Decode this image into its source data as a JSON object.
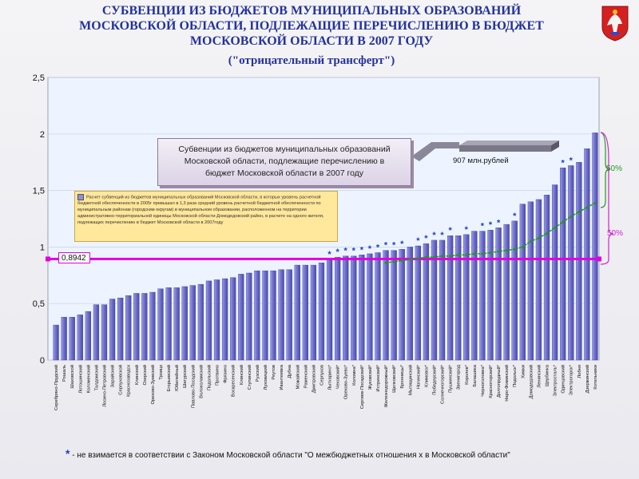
{
  "header": {
    "title_line1": "СУБВЕНЦИИ ИЗ БЮДЖЕТОВ МУНИЦИПАЛЬНЫХ ОБРАЗОВАНИЙ",
    "title_line2": "МОСКОВСКОЙ ОБЛАСТИ, ПОДЛЕЖАЩИЕ ПЕРЕЧИСЛЕНИЮ В БЮДЖЕТ",
    "title_line3": "МОСКОВСКОЙ ОБЛАСТИ В 2007 ГОДУ",
    "subtitle": "(\"отрицательный трансферт\")"
  },
  "callout": {
    "line1": "Субвенции из бюджетов муниципальных образований",
    "line2": "Московской области, подлежащие перечислению в",
    "line3": "бюджет Московской области в 2007 году",
    "amount": "907 млн.рублей"
  },
  "legend_box": {
    "text": "Расчет субвенций из бюджетов муниципальных образований Московской области, в которых уровень расчетной бюджетной обеспеченности в 2005г превышал в 1,3 раза средний уровень расчетной бюджетной обеспеченности по муниципальным районам (городским округам) в муниципальном образовании, расположенном на территории административно-территориальной единицы Московской области-Домодедовский район, в расчете на одного жителя, подлежащих перечислению в бюджет Московской области в 2007году"
  },
  "markers": {
    "value_label": "0,8942",
    "pct_50_green": "50%",
    "pct_50_magenta": "50%"
  },
  "footnote": {
    "star": "*",
    "text": " - не взимается в соответствии с Законом Московской области \"О межбюджетных отношения х в Московской области\""
  },
  "colors": {
    "bar": "#6d6dcc",
    "bar_edge": "#3e3e99",
    "plot_bg": "#edf4ff",
    "reference_line": "#e000e0",
    "trend_line": "#229922",
    "star": "#1a3fcc"
  },
  "chart_data": {
    "type": "bar",
    "title": "Субвенции из бюджетов муниципальных образований Московской области, подлежащие перечислению в бюджет Московской области в 2007 году",
    "ylim": [
      0,
      2.5
    ],
    "yticks": [
      "0",
      "0,5",
      "1",
      "1,5",
      "2",
      "2,5"
    ],
    "ytick_values": [
      0,
      0.5,
      1,
      1.5,
      2,
      2.5
    ],
    "reference_value": 0.8942,
    "categories": [
      "Серебряно-Прудский",
      "Рошаль",
      "Шаховской",
      "Лотошинский",
      "Коломенский",
      "Талдомский",
      "Лосино-Петровский",
      "Зарайский",
      "Серпуховской",
      "Краснозаводск",
      "Клинский",
      "Озерский",
      "Орехово-Зуевский",
      "Троицк",
      "Егорьевский",
      "Юбилейный",
      "Шатурский",
      "Павлово-Посадский",
      "Волоколамский",
      "Подольский",
      "Протвино",
      "Фрязино",
      "Воскресенский",
      "Клинский",
      "Ступинский",
      "Рузский",
      "Луховицкий",
      "Реутов",
      "Ивантеевка",
      "Дубна",
      "Можайский",
      "Раменский",
      "Дмитровский",
      "Серпухов",
      "Лыткарино*",
      "Чеховский*",
      "Орехово-Зуево*",
      "Коломна*",
      "Сергиев-Посадский*",
      "Жуковский*",
      "Истринский*",
      "Железнодорожный*",
      "Щелковский*",
      "Бронницы*",
      "Мытищинский",
      "Ногинский*",
      "Климовск*",
      "Победерский*",
      "Солнечногорский*",
      "Пушкинский*",
      "Звенигород",
      "Королев*",
      "Балашиха",
      "Черноголовка*",
      "Красногорский*",
      "Долгопрудный*",
      "Наро-Фоминский",
      "Подольск*",
      "Химки",
      "Домодедовский",
      "Ленинский",
      "Щербинка",
      "Электросталь*",
      "Одинцовский",
      "Электрогорск*",
      "Лобня",
      "Дзержинский",
      "Котельники"
    ],
    "values": [
      0.31,
      0.38,
      0.38,
      0.4,
      0.43,
      0.49,
      0.49,
      0.54,
      0.55,
      0.57,
      0.59,
      0.59,
      0.6,
      0.63,
      0.64,
      0.64,
      0.65,
      0.66,
      0.67,
      0.7,
      0.71,
      0.72,
      0.73,
      0.76,
      0.77,
      0.79,
      0.79,
      0.79,
      0.8,
      0.8,
      0.84,
      0.84,
      0.84,
      0.86,
      0.89,
      0.91,
      0.92,
      0.92,
      0.93,
      0.94,
      0.95,
      0.97,
      0.97,
      0.98,
      1.0,
      1.01,
      1.03,
      1.06,
      1.06,
      1.1,
      1.1,
      1.11,
      1.14,
      1.14,
      1.15,
      1.17,
      1.2,
      1.23,
      1.38,
      1.4,
      1.42,
      1.46,
      1.55,
      1.7,
      1.72,
      1.75,
      1.87,
      2.01
    ],
    "starred": [
      34,
      35,
      36,
      37,
      38,
      39,
      40,
      41,
      42,
      43,
      45,
      46,
      47,
      48,
      49,
      51,
      53,
      54,
      55,
      57,
      63,
      64
    ],
    "trend_start_index": 41,
    "trend_values": [
      0.86,
      0.87,
      0.88,
      0.89,
      0.9,
      0.91,
      0.91,
      0.92,
      0.92,
      0.93,
      0.93,
      0.94,
      0.94,
      0.95,
      0.96,
      0.97,
      0.98,
      1.0,
      1.05,
      1.08,
      1.12,
      1.17,
      1.22,
      1.27,
      1.31,
      1.35,
      1.39
    ]
  }
}
